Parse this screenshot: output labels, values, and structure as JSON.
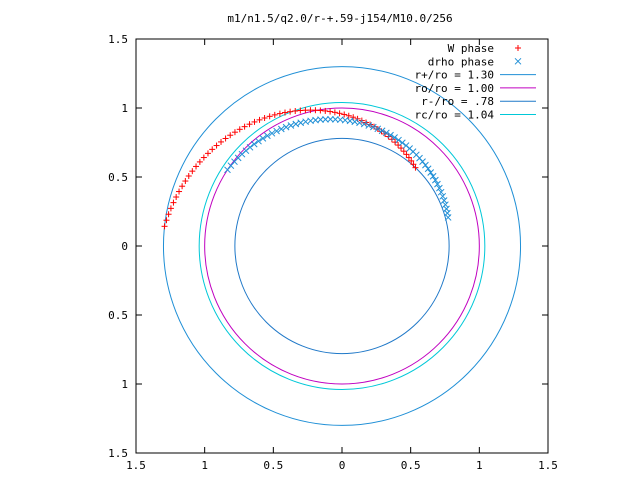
{
  "chart_data": {
    "type": "scatter",
    "title": "m1/n1.5/q2.0/r-+.59-j154/M10.0/256",
    "xlim": [
      -1.5,
      1.5
    ],
    "ylim": [
      -1.5,
      1.5
    ],
    "x_ticks": [
      -1.5,
      -1,
      -0.5,
      0,
      0.5,
      1,
      1.5
    ],
    "x_tick_labels": [
      "1.5",
      "1",
      "0.5",
      "0",
      "0.5",
      "1",
      "1.5"
    ],
    "y_ticks": [
      1.5,
      1,
      0.5,
      0,
      -0.5,
      -1,
      -1.5
    ],
    "y_tick_labels": [
      "1.5",
      "1",
      "0.5",
      "0",
      "0.5",
      "1",
      "1.5"
    ],
    "grid": false,
    "legend_position": "top-right",
    "series": [
      {
        "name": "W phase",
        "kind": "points",
        "marker": "plus",
        "color": "#ff0000",
        "arc": {
          "theta_start_deg": 173.7,
          "theta_end_deg": 46.7,
          "radius_start": 1.3,
          "radius_end": 0.78,
          "count": 64
        }
      },
      {
        "name": "drho phase",
        "kind": "points",
        "marker": "cross",
        "color": "#1f8fd6",
        "arc": {
          "theta_start_deg": 146.5,
          "theta_end_deg": 15.0,
          "radius_start": 1.0,
          "radius_end": 0.8,
          "count": 60
        }
      },
      {
        "name": "r+/ro = 1.30",
        "kind": "circle",
        "radius": 1.3,
        "color": "#1f8fd6"
      },
      {
        "name": "ro/ro = 1.00",
        "kind": "circle",
        "radius": 1.0,
        "color": "#c000c0"
      },
      {
        "name": "r-/ro = .78",
        "kind": "circle",
        "radius": 0.78,
        "color": "#1f78c8"
      },
      {
        "name": "rc/ro = 1.04",
        "kind": "circle",
        "radius": 1.04,
        "color": "#00c8d8"
      }
    ]
  }
}
